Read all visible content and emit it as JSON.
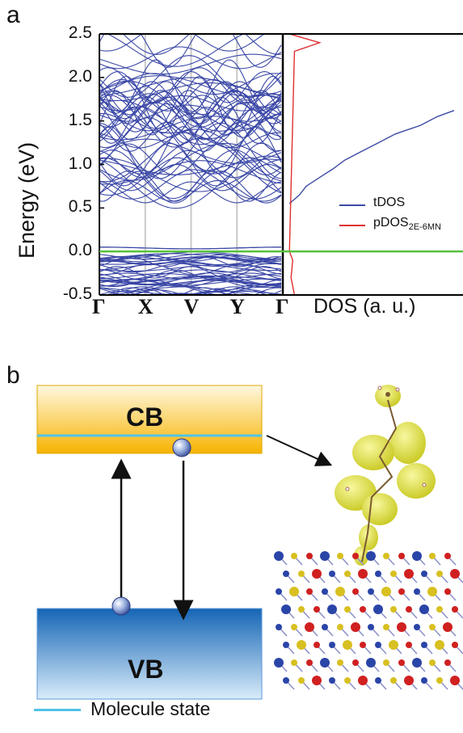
{
  "panel_a": {
    "letter": "a",
    "y_axis_label": "Energy (eV)",
    "y_ticks": [
      "2.5",
      "2.0",
      "1.5",
      "1.0",
      "0.5",
      "0.0",
      "-0.5"
    ],
    "k_points": [
      "Γ",
      "X",
      "V",
      "Y",
      "Γ"
    ],
    "dos_axis_label": "DOS (a. u.)",
    "legend": [
      {
        "label": "tDOS",
        "sub": "",
        "color": "#3d4aa3"
      },
      {
        "label": "pDOS",
        "sub": "2E-6MN",
        "color": "#e03030"
      }
    ],
    "colors": {
      "bands": "#3a47a6",
      "fermi": "#55c13a",
      "tdos": "#3d4aa3",
      "pdos": "#e03030"
    },
    "chart_data": {
      "type": "line",
      "ylim": [
        -0.5,
        2.5
      ],
      "ylabel": "Energy (eV)",
      "xlabel": "DOS (a. u.)",
      "x_ticks": [
        "Γ",
        "X",
        "V",
        "Y",
        "Γ"
      ],
      "fermi_level": 0.0,
      "series": [
        {
          "name": "tDOS",
          "energy": [
            0.55,
            0.65,
            0.75,
            0.85,
            0.95,
            1.05,
            1.15,
            1.25,
            1.35,
            1.45,
            1.55,
            1.62
          ],
          "dos": [
            0.02,
            0.08,
            0.12,
            0.2,
            0.28,
            0.35,
            0.45,
            0.55,
            0.65,
            0.8,
            0.9,
            1.0
          ]
        },
        {
          "name": "pDOS2E-6MN",
          "energy": [
            -0.5,
            -0.3,
            -0.1,
            0.0,
            2.3,
            2.4,
            2.5
          ],
          "dos": [
            0.05,
            0.03,
            0.04,
            0.02,
            0.05,
            0.2,
            0.02
          ]
        }
      ]
    }
  },
  "panel_b": {
    "letter": "b",
    "cb_label": "CB",
    "vb_label": "VB",
    "legend_label": "Molecule state",
    "colors": {
      "cb": "#f8b800",
      "vb": "#1f78c8",
      "molecule_state": "#4fc3e8",
      "isosurface": "#e8e83a"
    }
  }
}
